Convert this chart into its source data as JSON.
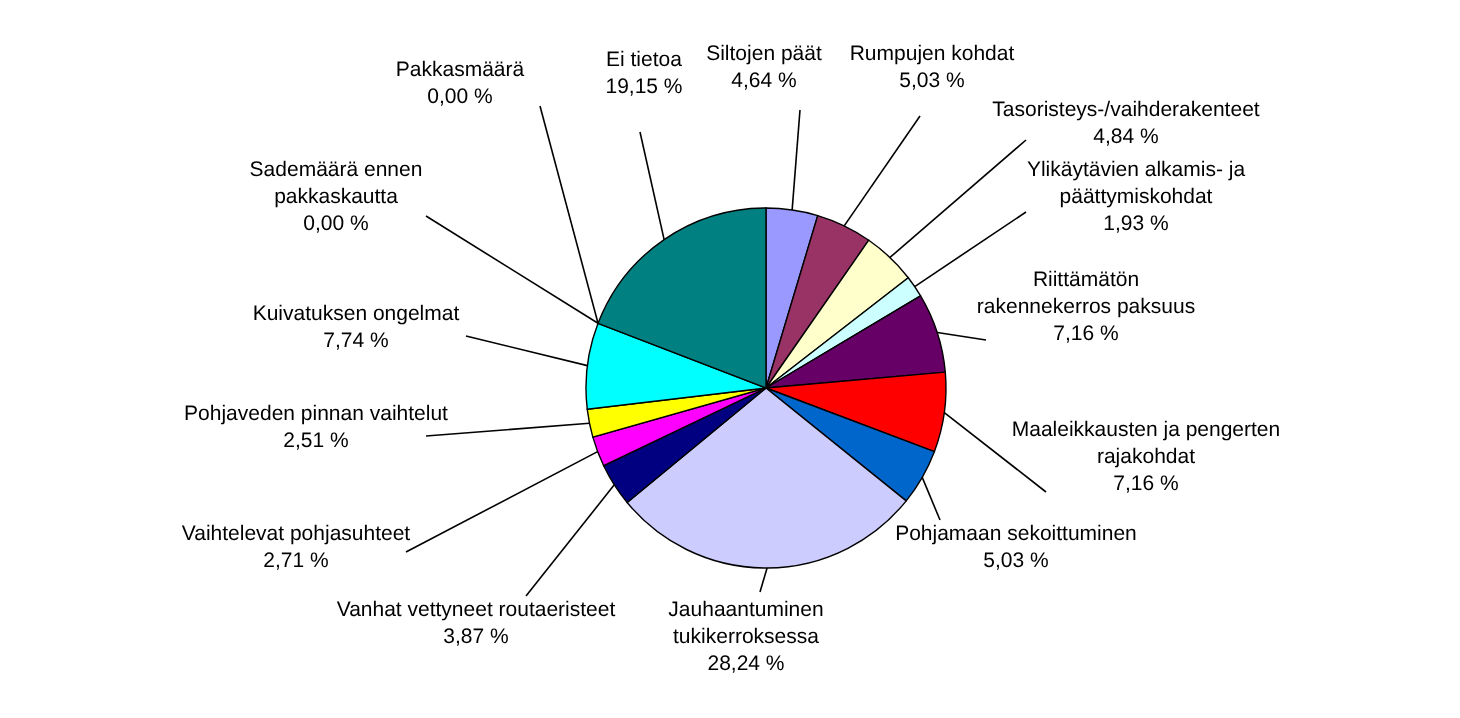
{
  "chart_data": {
    "type": "pie",
    "categories": [
      "Siltojen päät",
      "Rumpujen kohdat",
      "Tasoristeys-/vaihderakenteet",
      "Ylikäytävien alkamis- ja päättymiskohdat",
      "Riittämätön rakennekerros paksuus",
      "Maaleikkausten ja pengerten rajakohdat",
      "Pohjamaan sekoittuminen",
      "Jauhaantuminen tukikerroksessa",
      "Vanhat vettyneet routaeristeet",
      "Vaihtelevat pohjasuhteet",
      "Pohjaveden pinnan vaihtelut",
      "Kuivatuksen ongelmat",
      "Sademäärä ennen pakkaskautta",
      "Pakkasmäärä",
      "Ei tietoa"
    ],
    "values": [
      4.64,
      5.03,
      4.84,
      1.93,
      7.16,
      7.16,
      5.03,
      28.24,
      3.87,
      2.71,
      2.51,
      7.74,
      0,
      0,
      19.15
    ],
    "value_labels": [
      "4,64 %",
      "5,03 %",
      "4,84 %",
      "1,93 %",
      "7,16 %",
      "7,16 %",
      "5,03 %",
      "28,24 %",
      "3,87 %",
      "2,71 %",
      "2,51 %",
      "7,74 %",
      "0,00 %",
      "0,00 %",
      "19,15 %"
    ],
    "colors": [
      "#9999ff",
      "#993366",
      "#ffffcc",
      "#ccffff",
      "#660066",
      "#ff0000",
      "#0066cc",
      "#ccccff",
      "#000080",
      "#ff00ff",
      "#ffff00",
      "#00ffff",
      "#3366ff",
      "#339966",
      "#008080"
    ]
  }
}
